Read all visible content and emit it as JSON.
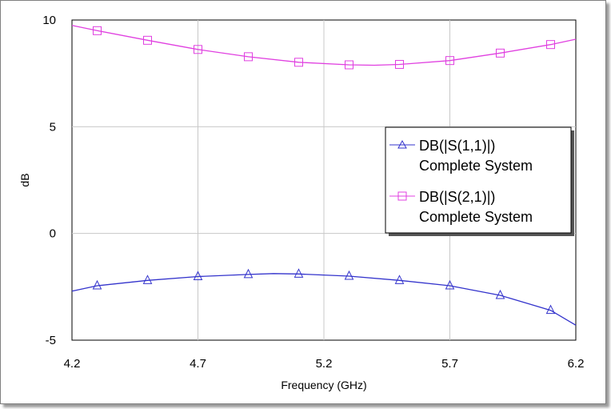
{
  "chart_data": {
    "type": "line",
    "title": "",
    "xlabel": "Frequency (GHz)",
    "ylabel": "dB",
    "xlim": [
      4.2,
      6.2
    ],
    "ylim": [
      -5,
      10
    ],
    "xticks": [
      4.2,
      4.7,
      5.2,
      5.7,
      6.2
    ],
    "xtick_labels": [
      "4.2",
      "4.7",
      "5.2",
      "5.7",
      "6.2"
    ],
    "yticks": [
      -5,
      0,
      5,
      10
    ],
    "ytick_labels": [
      "-5",
      "0",
      "5",
      "10"
    ],
    "grid": true,
    "legend_position": "center-right",
    "series": [
      {
        "name": "DB(|S(1,1)|)",
        "name_line2": "Complete System",
        "color": "#3333cc",
        "marker": "triangle",
        "x": [
          4.2,
          4.3,
          4.5,
          4.7,
          4.9,
          5.0,
          5.1,
          5.3,
          5.5,
          5.7,
          5.9,
          6.1,
          6.2
        ],
        "y": [
          -2.7,
          -2.45,
          -2.2,
          -2.02,
          -1.92,
          -1.88,
          -1.9,
          -2.0,
          -2.2,
          -2.45,
          -2.9,
          -3.6,
          -4.3
        ],
        "markers_x": [
          4.3,
          4.5,
          4.7,
          4.9,
          5.1,
          5.3,
          5.5,
          5.7,
          5.9,
          6.1
        ],
        "markers_y": [
          -2.45,
          -2.2,
          -2.02,
          -1.92,
          -1.9,
          -2.0,
          -2.2,
          -2.45,
          -2.9,
          -3.6
        ]
      },
      {
        "name": "DB(|S(2,1)|)",
        "name_line2": "Complete System",
        "color": "#e040e0",
        "marker": "square",
        "x": [
          4.2,
          4.3,
          4.5,
          4.7,
          4.9,
          5.1,
          5.3,
          5.4,
          5.5,
          5.7,
          5.9,
          6.1,
          6.2
        ],
        "y": [
          9.75,
          9.5,
          9.05,
          8.62,
          8.28,
          8.02,
          7.9,
          7.88,
          7.92,
          8.1,
          8.45,
          8.85,
          9.1
        ],
        "markers_x": [
          4.3,
          4.5,
          4.7,
          4.9,
          5.1,
          5.3,
          5.5,
          5.7,
          5.9,
          6.1
        ],
        "markers_y": [
          9.5,
          9.05,
          8.62,
          8.28,
          8.02,
          7.9,
          7.92,
          8.1,
          8.45,
          8.85
        ]
      }
    ]
  }
}
